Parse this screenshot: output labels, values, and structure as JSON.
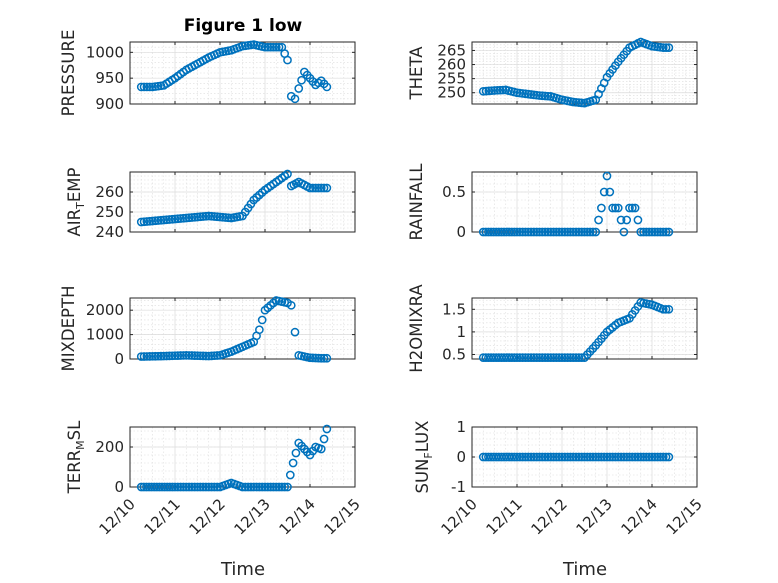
{
  "figure": {
    "title": "Figure 1 low"
  },
  "x_axis": {
    "label": "Time",
    "range": [
      "12/10",
      "12/15"
    ],
    "tick_labels": [
      "12/10",
      "12/11",
      "12/12",
      "12/13",
      "12/14",
      "12/15"
    ]
  },
  "colors": {
    "marker": "#0072BD",
    "axis": "#262626",
    "grid": "#dcdcdc"
  },
  "chart_data": [
    {
      "type": "scatter",
      "ylabel": "PRESSURE",
      "title": "Figure 1 low",
      "xlim": [
        "12/10",
        "12/15"
      ],
      "ylim": [
        900,
        1020
      ],
      "yticks": [
        900,
        950,
        1000
      ],
      "ytick_labels": [
        "900",
        "950",
        "1000"
      ],
      "x": [
        "12/10 06:00",
        "12/10 12:00",
        "12/10 18:00",
        "12/11 00:00",
        "12/11 06:00",
        "12/11 12:00",
        "12/11 18:00",
        "12/12 00:00",
        "12/12 06:00",
        "12/12 12:00",
        "12/12 18:00",
        "12/13 00:00",
        "12/13 06:00",
        "12/13 09:00",
        "12/13 12:00",
        "12/13 14:00",
        "12/13 16:00",
        "12/13 18:00",
        "12/13 21:00",
        "12/14 00:00",
        "12/14 03:00",
        "12/14 06:00",
        "12/14 09:00"
      ],
      "y": [
        933,
        933,
        936,
        950,
        966,
        978,
        990,
        1000,
        1004,
        1012,
        1015,
        1010,
        1010,
        1010,
        985,
        915,
        910,
        930,
        962,
        950,
        937,
        945,
        933
      ]
    },
    {
      "type": "scatter",
      "ylabel": "THETA",
      "xlim": [
        "12/10",
        "12/15"
      ],
      "ylim": [
        246,
        268
      ],
      "yticks": [
        250,
        255,
        260,
        265
      ],
      "ytick_labels": [
        "250",
        "255",
        "260",
        "265"
      ],
      "x": [
        "12/10 06:00",
        "12/10 12:00",
        "12/10 18:00",
        "12/11 00:00",
        "12/11 06:00",
        "12/11 12:00",
        "12/11 18:00",
        "12/12 00:00",
        "12/12 06:00",
        "12/12 12:00",
        "12/12 18:00",
        "12/13 00:00",
        "12/13 06:00",
        "12/13 12:00",
        "12/13 18:00",
        "12/14 00:00",
        "12/14 06:00",
        "12/14 09:00"
      ],
      "y": [
        250.5,
        250.8,
        251,
        250,
        249.5,
        249,
        248.7,
        247.5,
        246.7,
        246.3,
        247.5,
        255.5,
        261,
        266,
        268,
        266.5,
        266,
        266
      ]
    },
    {
      "type": "scatter",
      "ylabel": "AIR",
      "ylabel_sub": "T",
      "ylabel_tail": "EMP",
      "xlim": [
        "12/10",
        "12/15"
      ],
      "ylim": [
        240,
        270
      ],
      "yticks": [
        240,
        250,
        260
      ],
      "ytick_labels": [
        "240",
        "250",
        "260"
      ],
      "x": [
        "12/10 06:00",
        "12/10 12:00",
        "12/10 18:00",
        "12/11 00:00",
        "12/11 06:00",
        "12/11 12:00",
        "12/11 18:00",
        "12/12 00:00",
        "12/12 06:00",
        "12/12 12:00",
        "12/12 18:00",
        "12/13 00:00",
        "12/13 06:00",
        "12/13 12:00",
        "12/13 14:00",
        "12/13 18:00",
        "12/14 00:00",
        "12/14 06:00",
        "12/14 09:00"
      ],
      "y": [
        245,
        245.5,
        246,
        246.5,
        247,
        247.5,
        248,
        247.5,
        247,
        248,
        256,
        261,
        265,
        269,
        263,
        265,
        262,
        262,
        262
      ]
    },
    {
      "type": "scatter",
      "ylabel": "RAINFALL",
      "xlim": [
        "12/10",
        "12/15"
      ],
      "ylim": [
        0,
        0.75
      ],
      "yticks": [
        0,
        0.5
      ],
      "ytick_labels": [
        "0",
        "0.5"
      ],
      "x": [
        "12/10 06:00",
        "12/11 00:00",
        "12/11 12:00",
        "12/12 00:00",
        "12/12 12:00",
        "12/12 18:00",
        "12/12 21:00",
        "12/13 00:00",
        "12/13 03:00",
        "12/13 06:00",
        "12/13 09:00",
        "12/13 12:00",
        "12/13 15:00",
        "12/13 18:00",
        "12/14 00:00",
        "12/14 09:00"
      ],
      "y": [
        0,
        0,
        0,
        0,
        0,
        0,
        0.3,
        0.7,
        0.3,
        0.3,
        0,
        0.3,
        0.3,
        0,
        0,
        0
      ]
    },
    {
      "type": "scatter",
      "ylabel": "MIXDEPTH",
      "xlim": [
        "12/10",
        "12/15"
      ],
      "ylim": [
        0,
        2500
      ],
      "yticks": [
        0,
        1000,
        2000
      ],
      "ytick_labels": [
        "0",
        "1000",
        "2000"
      ],
      "x": [
        "12/10 06:00",
        "12/10 18:00",
        "12/11 06:00",
        "12/11 18:00",
        "12/12 00:00",
        "12/12 06:00",
        "12/12 12:00",
        "12/12 18:00",
        "12/12 21:00",
        "12/13 00:00",
        "12/13 06:00",
        "12/13 12:00",
        "12/13 14:00",
        "12/13 16:00",
        "12/13 18:00",
        "12/14 00:00",
        "12/14 06:00",
        "12/14 09:00"
      ],
      "y": [
        100,
        120,
        150,
        120,
        150,
        300,
        500,
        700,
        1200,
        2000,
        2400,
        2300,
        2200,
        1100,
        150,
        50,
        30,
        30
      ]
    },
    {
      "type": "scatter",
      "ylabel": "H2OMIXRA",
      "xlim": [
        "12/10",
        "12/15"
      ],
      "ylim": [
        0.4,
        1.75
      ],
      "yticks": [
        0.5,
        1,
        1.5
      ],
      "ytick_labels": [
        "0.5",
        "1",
        "1.5"
      ],
      "x": [
        "12/10 06:00",
        "12/11 00:00",
        "12/11 12:00",
        "12/12 00:00",
        "12/12 12:00",
        "12/12 18:00",
        "12/13 00:00",
        "12/13 06:00",
        "12/13 12:00",
        "12/13 18:00",
        "12/14 00:00",
        "12/14 06:00",
        "12/14 09:00"
      ],
      "y": [
        0.43,
        0.43,
        0.43,
        0.43,
        0.43,
        0.7,
        1.0,
        1.2,
        1.3,
        1.65,
        1.6,
        1.5,
        1.5
      ]
    },
    {
      "type": "scatter",
      "ylabel": "TERR",
      "ylabel_sub": "M",
      "ylabel_tail": "SL",
      "xlim": [
        "12/10",
        "12/15"
      ],
      "ylim": [
        0,
        300
      ],
      "yticks": [
        0,
        200
      ],
      "ytick_labels": [
        "0",
        "200"
      ],
      "x": [
        "12/10 06:00",
        "12/11 00:00",
        "12/11 12:00",
        "12/12 00:00",
        "12/12 06:00",
        "12/12 12:00",
        "12/13 00:00",
        "12/13 12:00",
        "12/13 15:00",
        "12/13 18:00",
        "12/14 00:00",
        "12/14 03:00",
        "12/14 06:00",
        "12/14 09:00"
      ],
      "y": [
        0,
        0,
        0,
        0,
        20,
        0,
        0,
        0,
        120,
        220,
        160,
        200,
        190,
        290
      ]
    },
    {
      "type": "scatter",
      "ylabel": "SUN",
      "ylabel_sub": "F",
      "ylabel_tail": "LUX",
      "xlim": [
        "12/10",
        "12/15"
      ],
      "ylim": [
        -1,
        1
      ],
      "yticks": [
        -1,
        0,
        1
      ],
      "ytick_labels": [
        "-1",
        "0",
        "1"
      ],
      "x": [
        "12/10 06:00",
        "12/11 00:00",
        "12/11 12:00",
        "12/12 00:00",
        "12/12 12:00",
        "12/13 00:00",
        "12/13 12:00",
        "12/14 00:00",
        "12/14 09:00"
      ],
      "y": [
        0,
        0,
        0,
        0,
        0,
        0,
        0,
        0,
        0
      ]
    }
  ]
}
